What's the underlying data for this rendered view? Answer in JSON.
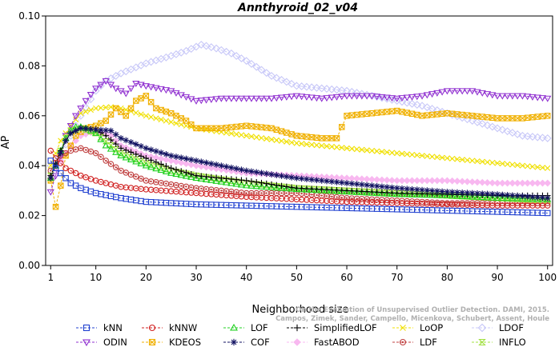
{
  "chart_data": {
    "type": "line",
    "title": "Annthyroid_02_v04",
    "xlabel": "Neighborhood size",
    "ylabel": "AP",
    "xlim": [
      0,
      101
    ],
    "ylim": [
      0,
      0.1
    ],
    "xticks": [
      1,
      10,
      20,
      30,
      40,
      50,
      60,
      70,
      80,
      90,
      100
    ],
    "yticks": [
      0.0,
      0.02,
      0.04,
      0.06,
      0.08,
      0.1
    ],
    "ytick_labels": [
      "0.00",
      "0.02",
      "0.04",
      "0.06",
      "0.08",
      "0.10"
    ],
    "grid": false,
    "legend_position": "bottom",
    "credit_lines": [
      "Campos, Zimek, Sander, Campello, Micenkova, Schubert, Assent, Houle",
      "On the Evaluation of Unsupervised Outlier Detection. DAMI, 2015."
    ],
    "series": [
      {
        "name": "kNN",
        "color": "#2040d0",
        "marker": "square",
        "points": [
          [
            1,
            0.042
          ],
          [
            2,
            0.039
          ],
          [
            3,
            0.037
          ],
          [
            4,
            0.035
          ],
          [
            5,
            0.033
          ],
          [
            7,
            0.031
          ],
          [
            10,
            0.029
          ],
          [
            15,
            0.027
          ],
          [
            20,
            0.0255
          ],
          [
            30,
            0.0245
          ],
          [
            40,
            0.024
          ],
          [
            50,
            0.0235
          ],
          [
            60,
            0.023
          ],
          [
            70,
            0.0225
          ],
          [
            80,
            0.022
          ],
          [
            90,
            0.0215
          ],
          [
            100,
            0.021
          ]
        ]
      },
      {
        "name": "kNNW",
        "color": "#d02020",
        "marker": "circle",
        "points": [
          [
            1,
            0.046
          ],
          [
            2,
            0.043
          ],
          [
            3,
            0.041
          ],
          [
            4,
            0.039
          ],
          [
            5,
            0.038
          ],
          [
            7,
            0.036
          ],
          [
            10,
            0.034
          ],
          [
            15,
            0.0315
          ],
          [
            20,
            0.0305
          ],
          [
            30,
            0.029
          ],
          [
            40,
            0.0275
          ],
          [
            50,
            0.0265
          ],
          [
            60,
            0.0255
          ],
          [
            70,
            0.025
          ],
          [
            80,
            0.0245
          ],
          [
            90,
            0.024
          ],
          [
            100,
            0.024
          ]
        ]
      },
      {
        "name": "LOF",
        "color": "#20d020",
        "marker": "triangle-up",
        "points": [
          [
            1,
            0.035
          ],
          [
            2,
            0.04
          ],
          [
            3,
            0.046
          ],
          [
            4,
            0.051
          ],
          [
            5,
            0.054
          ],
          [
            6,
            0.0555
          ],
          [
            7,
            0.0555
          ],
          [
            8,
            0.055
          ],
          [
            10,
            0.053
          ],
          [
            12,
            0.048
          ],
          [
            15,
            0.044
          ],
          [
            20,
            0.04
          ],
          [
            25,
            0.037
          ],
          [
            30,
            0.035
          ],
          [
            40,
            0.032
          ],
          [
            50,
            0.0305
          ],
          [
            60,
            0.0295
          ],
          [
            70,
            0.0285
          ],
          [
            80,
            0.028
          ],
          [
            90,
            0.027
          ],
          [
            100,
            0.0265
          ]
        ]
      },
      {
        "name": "SimplifiedLOF",
        "color": "#000000",
        "marker": "plus",
        "points": [
          [
            1,
            0.036
          ],
          [
            2,
            0.041
          ],
          [
            3,
            0.046
          ],
          [
            4,
            0.05
          ],
          [
            5,
            0.053
          ],
          [
            7,
            0.055
          ],
          [
            10,
            0.0545
          ],
          [
            12,
            0.052
          ],
          [
            15,
            0.047
          ],
          [
            20,
            0.043
          ],
          [
            25,
            0.039
          ],
          [
            30,
            0.036
          ],
          [
            40,
            0.034
          ],
          [
            50,
            0.031
          ],
          [
            60,
            0.03
          ],
          [
            70,
            0.029
          ],
          [
            80,
            0.0285
          ],
          [
            90,
            0.028
          ],
          [
            100,
            0.028
          ]
        ]
      },
      {
        "name": "LoOP",
        "color": "#f0e000",
        "marker": "x",
        "points": [
          [
            1,
            0.04
          ],
          [
            3,
            0.05
          ],
          [
            5,
            0.056
          ],
          [
            7,
            0.061
          ],
          [
            10,
            0.063
          ],
          [
            13,
            0.0635
          ],
          [
            15,
            0.063
          ],
          [
            20,
            0.06
          ],
          [
            30,
            0.055
          ],
          [
            40,
            0.052
          ],
          [
            50,
            0.049
          ],
          [
            60,
            0.047
          ],
          [
            70,
            0.045
          ],
          [
            80,
            0.043
          ],
          [
            90,
            0.041
          ],
          [
            100,
            0.039
          ]
        ]
      },
      {
        "name": "LDOF",
        "color": "#c8c8f8",
        "marker": "diamond",
        "points": [
          [
            1,
            0.04
          ],
          [
            3,
            0.045
          ],
          [
            5,
            0.052
          ],
          [
            7,
            0.06
          ],
          [
            10,
            0.07
          ],
          [
            12,
            0.074
          ],
          [
            15,
            0.077
          ],
          [
            20,
            0.081
          ],
          [
            25,
            0.084
          ],
          [
            28,
            0.086
          ],
          [
            31,
            0.0885
          ],
          [
            34,
            0.087
          ],
          [
            37,
            0.085
          ],
          [
            40,
            0.082
          ],
          [
            45,
            0.076
          ],
          [
            50,
            0.072
          ],
          [
            55,
            0.071
          ],
          [
            60,
            0.07
          ],
          [
            65,
            0.068
          ],
          [
            70,
            0.066
          ],
          [
            75,
            0.064
          ],
          [
            80,
            0.061
          ],
          [
            85,
            0.058
          ],
          [
            90,
            0.055
          ],
          [
            95,
            0.052
          ],
          [
            100,
            0.051
          ]
        ]
      },
      {
        "name": "ODIN",
        "color": "#9030d0",
        "marker": "triangle-down",
        "points": [
          [
            1,
            0.0295
          ],
          [
            2,
            0.036
          ],
          [
            3,
            0.044
          ],
          [
            4,
            0.052
          ],
          [
            6,
            0.06
          ],
          [
            8,
            0.066
          ],
          [
            10,
            0.071
          ],
          [
            12,
            0.074
          ],
          [
            14,
            0.071
          ],
          [
            16,
            0.069
          ],
          [
            18,
            0.073
          ],
          [
            20,
            0.072
          ],
          [
            25,
            0.07
          ],
          [
            30,
            0.066
          ],
          [
            35,
            0.067
          ],
          [
            40,
            0.067
          ],
          [
            45,
            0.067
          ],
          [
            50,
            0.068
          ],
          [
            55,
            0.067
          ],
          [
            60,
            0.068
          ],
          [
            65,
            0.068
          ],
          [
            70,
            0.067
          ],
          [
            75,
            0.068
          ],
          [
            80,
            0.07
          ],
          [
            85,
            0.07
          ],
          [
            90,
            0.068
          ],
          [
            95,
            0.068
          ],
          [
            100,
            0.067
          ]
        ]
      },
      {
        "name": "KDEOS",
        "color": "#f0b000",
        "marker": "square-x",
        "points": [
          [
            1,
            0.034
          ],
          [
            2,
            0.0235
          ],
          [
            3,
            0.032
          ],
          [
            4,
            0.044
          ],
          [
            5,
            0.048
          ],
          [
            6,
            0.052
          ],
          [
            8,
            0.055
          ],
          [
            10,
            0.056
          ],
          [
            12,
            0.058
          ],
          [
            14,
            0.063
          ],
          [
            16,
            0.06
          ],
          [
            18,
            0.066
          ],
          [
            20,
            0.068
          ],
          [
            22,
            0.063
          ],
          [
            25,
            0.061
          ],
          [
            28,
            0.058
          ],
          [
            30,
            0.055
          ],
          [
            35,
            0.055
          ],
          [
            40,
            0.056
          ],
          [
            45,
            0.055
          ],
          [
            50,
            0.052
          ],
          [
            55,
            0.051
          ],
          [
            58,
            0.051
          ],
          [
            60,
            0.06
          ],
          [
            65,
            0.061
          ],
          [
            70,
            0.062
          ],
          [
            75,
            0.06
          ],
          [
            80,
            0.061
          ],
          [
            85,
            0.06
          ],
          [
            90,
            0.059
          ],
          [
            95,
            0.059
          ],
          [
            100,
            0.06
          ]
        ]
      },
      {
        "name": "COF",
        "color": "#101060",
        "marker": "asterisk",
        "points": [
          [
            1,
            0.035
          ],
          [
            2,
            0.04
          ],
          [
            3,
            0.045
          ],
          [
            4,
            0.05
          ],
          [
            5,
            0.053
          ],
          [
            7,
            0.055
          ],
          [
            10,
            0.0545
          ],
          [
            13,
            0.054
          ],
          [
            15,
            0.051
          ],
          [
            20,
            0.047
          ],
          [
            25,
            0.044
          ],
          [
            30,
            0.042
          ],
          [
            35,
            0.04
          ],
          [
            40,
            0.038
          ],
          [
            50,
            0.035
          ],
          [
            60,
            0.033
          ],
          [
            70,
            0.031
          ],
          [
            80,
            0.0295
          ],
          [
            90,
            0.0285
          ],
          [
            100,
            0.027
          ]
        ]
      },
      {
        "name": "FastABOD",
        "color": "#f8b8f0",
        "marker": "diamond-filled",
        "points": [
          [
            1,
            0.036
          ],
          [
            3,
            0.042
          ],
          [
            5,
            0.048
          ],
          [
            7,
            0.052
          ],
          [
            10,
            0.054
          ],
          [
            13,
            0.052
          ],
          [
            15,
            0.048
          ],
          [
            20,
            0.044
          ],
          [
            30,
            0.04
          ],
          [
            40,
            0.037
          ],
          [
            50,
            0.036
          ],
          [
            60,
            0.035
          ],
          [
            70,
            0.034
          ],
          [
            80,
            0.034
          ],
          [
            90,
            0.033
          ],
          [
            100,
            0.033
          ]
        ]
      },
      {
        "name": "LDF",
        "color": "#c04040",
        "marker": "circle-dot",
        "points": [
          [
            1,
            0.038
          ],
          [
            3,
            0.044
          ],
          [
            5,
            0.046
          ],
          [
            7,
            0.047
          ],
          [
            10,
            0.045
          ],
          [
            12,
            0.042
          ],
          [
            15,
            0.038
          ],
          [
            20,
            0.034
          ],
          [
            30,
            0.031
          ],
          [
            40,
            0.029
          ],
          [
            50,
            0.029
          ],
          [
            60,
            0.027
          ],
          [
            70,
            0.026
          ],
          [
            80,
            0.025
          ],
          [
            90,
            0.025
          ],
          [
            100,
            0.025
          ]
        ]
      },
      {
        "name": "INFLO",
        "color": "#a0e040",
        "marker": "hourglass",
        "points": [
          [
            1,
            0.036
          ],
          [
            2,
            0.04
          ],
          [
            3,
            0.046
          ],
          [
            4,
            0.051
          ],
          [
            5,
            0.054
          ],
          [
            7,
            0.055
          ],
          [
            10,
            0.053
          ],
          [
            15,
            0.045
          ],
          [
            20,
            0.041
          ],
          [
            25,
            0.038
          ],
          [
            30,
            0.036
          ],
          [
            40,
            0.033
          ],
          [
            50,
            0.031
          ],
          [
            60,
            0.03
          ],
          [
            70,
            0.029
          ],
          [
            80,
            0.028
          ],
          [
            90,
            0.027
          ],
          [
            100,
            0.026
          ]
        ]
      }
    ]
  }
}
